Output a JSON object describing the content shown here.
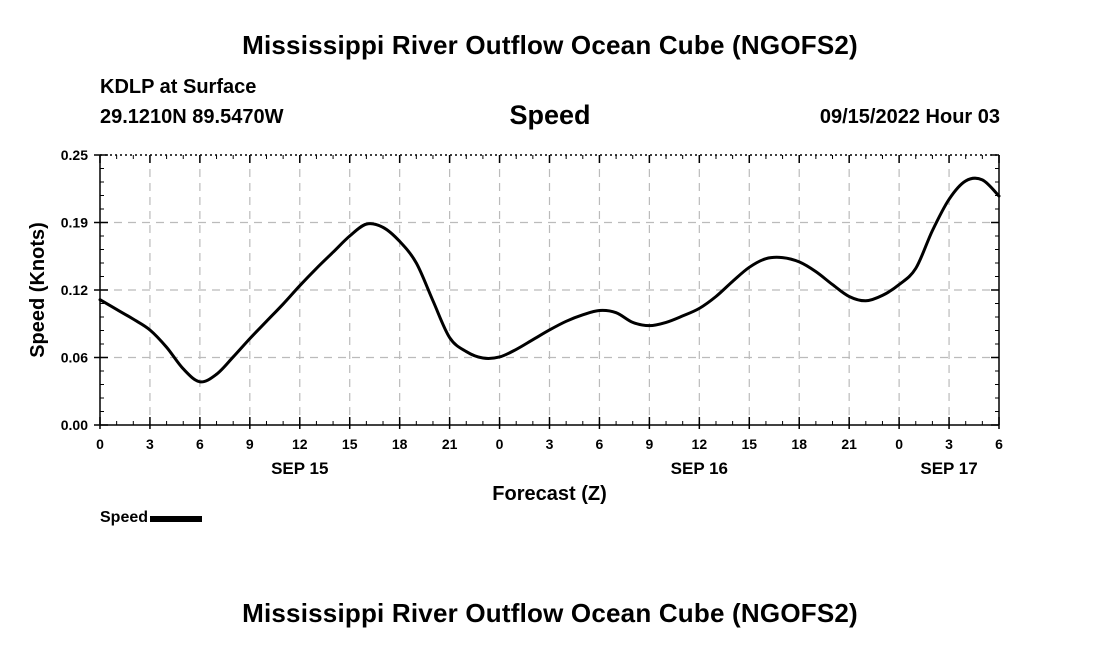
{
  "header": {
    "title": "Mississippi River Outflow Ocean Cube (NGOFS2)",
    "station": "KDLP at Surface",
    "coordinates": "29.1210N  89.5470W",
    "timestamp": "09/15/2022 Hour 03",
    "footer_title": "Mississippi River Outflow Ocean Cube (NGOFS2)"
  },
  "legend": {
    "label": "Speed"
  },
  "chart_data": {
    "type": "line",
    "title": "Speed",
    "xlabel": "Forecast (Z)",
    "ylabel": "Speed (Knots)",
    "xlim": [
      0,
      54
    ],
    "ylim": [
      0,
      0.25
    ],
    "grid": true,
    "yticks": [
      {
        "value": 0,
        "label": "0.00"
      },
      {
        "value": 0.0625,
        "label": "0.06"
      },
      {
        "value": 0.125,
        "label": "0.12"
      },
      {
        "value": 0.1875,
        "label": "0.19"
      },
      {
        "value": 0.25,
        "label": "0.25"
      }
    ],
    "xticks": [
      {
        "value": 0,
        "label": "0"
      },
      {
        "value": 3,
        "label": "3"
      },
      {
        "value": 6,
        "label": "6"
      },
      {
        "value": 9,
        "label": "9"
      },
      {
        "value": 12,
        "label": "12"
      },
      {
        "value": 15,
        "label": "15"
      },
      {
        "value": 18,
        "label": "18"
      },
      {
        "value": 21,
        "label": "21"
      },
      {
        "value": 24,
        "label": "0"
      },
      {
        "value": 27,
        "label": "3"
      },
      {
        "value": 30,
        "label": "6"
      },
      {
        "value": 33,
        "label": "9"
      },
      {
        "value": 36,
        "label": "12"
      },
      {
        "value": 39,
        "label": "15"
      },
      {
        "value": 42,
        "label": "18"
      },
      {
        "value": 45,
        "label": "21"
      },
      {
        "value": 48,
        "label": "0"
      },
      {
        "value": 51,
        "label": "3"
      },
      {
        "value": 54,
        "label": "6"
      }
    ],
    "date_labels": [
      {
        "value": 12,
        "label": "SEP 15"
      },
      {
        "value": 36,
        "label": "SEP 16"
      },
      {
        "value": 51,
        "label": "SEP 17"
      }
    ],
    "series": [
      {
        "name": "Speed",
        "color": "#000000",
        "x": [
          0,
          1,
          2,
          3,
          4,
          5,
          6,
          7,
          8,
          9,
          10,
          11,
          12,
          13,
          14,
          15,
          16,
          17,
          18,
          19,
          20,
          21,
          22,
          23,
          24,
          25,
          26,
          27,
          28,
          29,
          30,
          31,
          32,
          33,
          34,
          35,
          36,
          37,
          38,
          39,
          40,
          41,
          42,
          43,
          44,
          45,
          46,
          47,
          48,
          49,
          50,
          51,
          52,
          53,
          54
        ],
        "values": [
          0.116,
          0.107,
          0.098,
          0.088,
          0.072,
          0.052,
          0.04,
          0.047,
          0.063,
          0.08,
          0.096,
          0.112,
          0.129,
          0.145,
          0.16,
          0.175,
          0.186,
          0.183,
          0.17,
          0.15,
          0.115,
          0.081,
          0.068,
          0.062,
          0.063,
          0.07,
          0.079,
          0.088,
          0.096,
          0.102,
          0.106,
          0.104,
          0.095,
          0.092,
          0.095,
          0.101,
          0.108,
          0.119,
          0.133,
          0.146,
          0.154,
          0.155,
          0.151,
          0.142,
          0.13,
          0.119,
          0.115,
          0.12,
          0.13,
          0.145,
          0.18,
          0.209,
          0.226,
          0.227,
          0.212
        ]
      }
    ]
  }
}
